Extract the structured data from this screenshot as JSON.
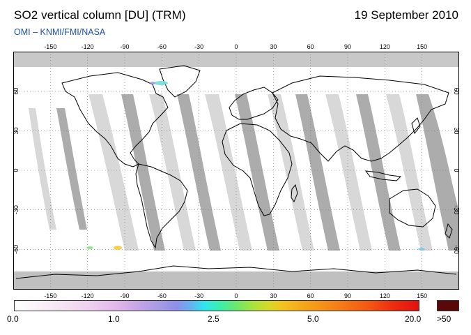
{
  "header": {
    "title": "SO2 vertical column [DU] (TRM)",
    "date": "19 September 2010",
    "subtitle": "OMI  –  KNMI/FMI/NASA"
  },
  "map": {
    "projection": "equirectangular",
    "lon_range": [
      -180,
      180
    ],
    "lat_range": [
      -90,
      90
    ],
    "lon_ticks": [
      "-150",
      "-120",
      "-90",
      "-60",
      "-30",
      "0",
      "30",
      "60",
      "90",
      "120",
      "150"
    ],
    "lat_ticks": [
      "60",
      "30",
      "0",
      "-30",
      "-60"
    ],
    "grid": "dotted",
    "colors": {
      "ocean": "#ffffff",
      "swath_dark": "#a6a6a6",
      "swath_light": "#d6d6d6",
      "polar_no_data": "#c0c0c0",
      "coastline": "#000000"
    }
  },
  "colorbar": {
    "labels": [
      "0.0",
      "1.0",
      "2.5",
      "5.0",
      "20.0"
    ],
    "overflow_label": ">50",
    "overflow_color": "#5a0808"
  }
}
